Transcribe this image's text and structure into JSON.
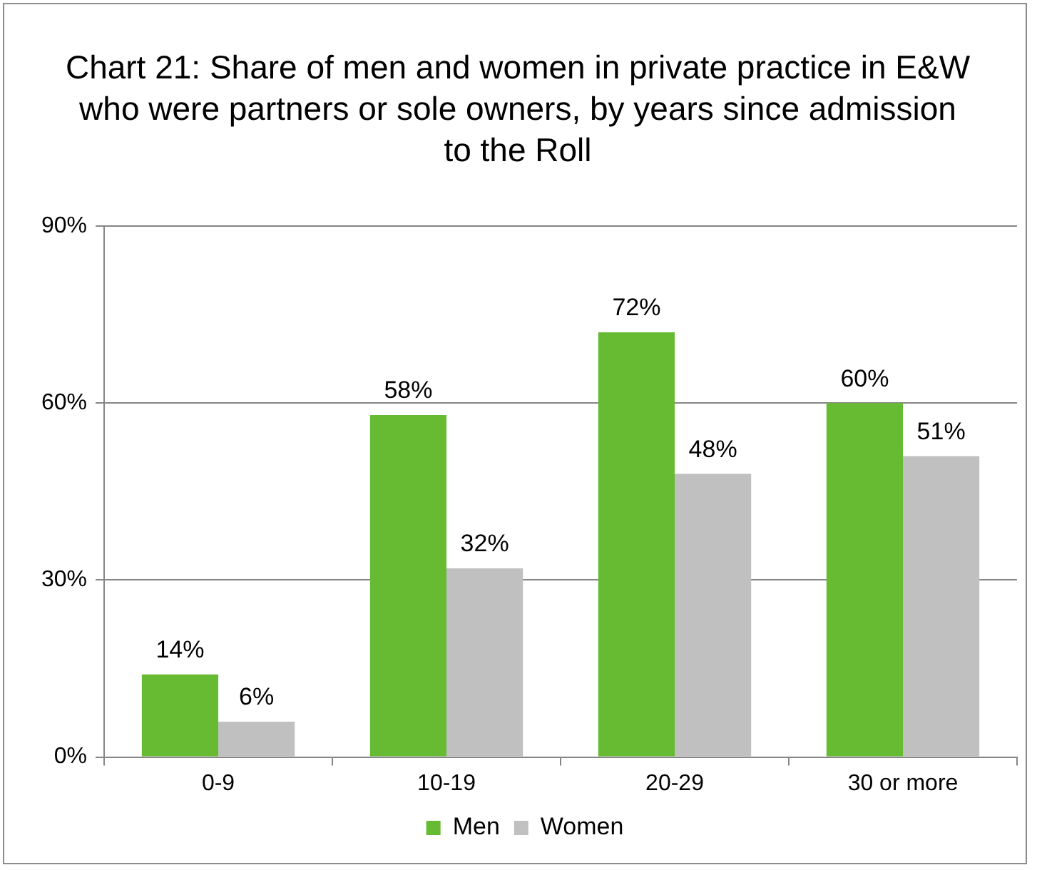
{
  "chart_data": {
    "type": "bar",
    "title": "Chart 21: Share of men and women in private practice in E&W who were partners or sole owners, by years since admission to the Roll",
    "categories": [
      "0-9",
      "10-19",
      "20-29",
      "30 or more"
    ],
    "series": [
      {
        "name": "Men",
        "color": "#66bb33",
        "values": [
          14,
          58,
          72,
          60
        ],
        "value_labels": [
          "14%",
          "58%",
          "72%",
          "60%"
        ]
      },
      {
        "name": "Women",
        "color": "#c0c0c0",
        "values": [
          6,
          32,
          48,
          51
        ],
        "value_labels": [
          "6%",
          "32%",
          "48%",
          "51%"
        ]
      }
    ],
    "ylim": [
      0,
      90
    ],
    "yticks": [
      {
        "value": 0,
        "label": "0%"
      },
      {
        "value": 30,
        "label": "30%"
      },
      {
        "value": 60,
        "label": "60%"
      },
      {
        "value": 90,
        "label": "90%"
      }
    ],
    "grid": "y",
    "legend": "bottom"
  }
}
